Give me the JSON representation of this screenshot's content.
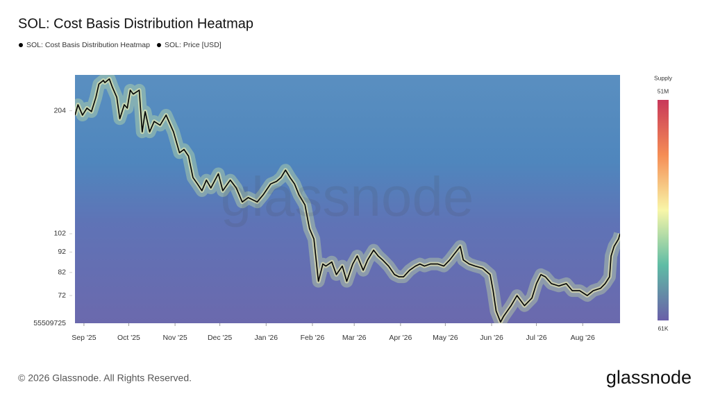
{
  "chart_data": {
    "type": "line",
    "title": "SOL: Cost Basis Distribution Heatmap",
    "legend": [
      "SOL: Cost Basis Distribution Heatmap",
      "SOL: Price [USD]"
    ],
    "log_scale": true,
    "ylim": [
      61.6,
      249.6
    ],
    "yticks": [
      204,
      102,
      92,
      82,
      72
    ],
    "y_min_label": "55509725",
    "xlim": [
      -6,
      359
    ],
    "xticks": [
      {
        "value": 0,
        "label": "Sep '25"
      },
      {
        "value": 30,
        "label": "Oct '25"
      },
      {
        "value": 61,
        "label": "Nov '25"
      },
      {
        "value": 91,
        "label": "Dec '25"
      },
      {
        "value": 122,
        "label": "Jan '26"
      },
      {
        "value": 153,
        "label": "Feb '26"
      },
      {
        "value": 181,
        "label": "Mar '26"
      },
      {
        "value": 212,
        "label": "Apr '26"
      },
      {
        "value": 242,
        "label": "May '26"
      },
      {
        "value": 273,
        "label": "Jun '26"
      },
      {
        "value": 303,
        "label": "Jul '26"
      },
      {
        "value": 334,
        "label": "Aug '26"
      }
    ],
    "colorbar": {
      "title": "Supply",
      "max_label": "51M",
      "min_label": "61K"
    },
    "series": [
      {
        "name": "SOL: Price [USD]",
        "color": "#000000",
        "x": [
          -6,
          -4,
          -1,
          2,
          5,
          8,
          10,
          13,
          14,
          17,
          19,
          22,
          24,
          27,
          29,
          31,
          33,
          37,
          39,
          41,
          44,
          47,
          51,
          55,
          60,
          64,
          67,
          70,
          73,
          76,
          79,
          82,
          85,
          90,
          93,
          98,
          102,
          106,
          110,
          116,
          120,
          125,
          129,
          132,
          135,
          138,
          141,
          144,
          148,
          151,
          154,
          157,
          160,
          162,
          166,
          169,
          173,
          176,
          180,
          183,
          187,
          190,
          194,
          197,
          200,
          204,
          208,
          211,
          214,
          218,
          222,
          225,
          228,
          232,
          237,
          241,
          245,
          248,
          252,
          254,
          258,
          262,
          267,
          272,
          274,
          276,
          279,
          281,
          286,
          290,
          295,
          300,
          303,
          306,
          309,
          313,
          318,
          323,
          327,
          332,
          337,
          341,
          346,
          349,
          352,
          353,
          355,
          358,
          359
        ],
        "values": [
          199,
          211,
          199,
          207,
          203,
          220,
          237,
          242,
          239,
          244,
          233,
          220,
          195,
          211,
          207,
          229,
          224,
          229,
          181,
          203,
          181,
          192,
          188,
          199,
          181,
          161,
          164,
          158,
          140,
          135,
          130,
          138,
          132,
          143,
          130,
          138,
          132,
          122,
          125,
          122,
          127,
          135,
          137,
          140,
          146,
          140,
          135,
          127,
          120,
          105,
          99,
          78,
          86,
          85,
          87,
          81,
          85,
          78,
          86,
          90,
          83,
          88,
          93,
          90,
          88,
          85,
          81,
          80,
          80,
          83,
          85,
          86,
          85,
          86,
          86,
          85,
          88,
          91,
          95,
          88,
          86,
          85,
          84,
          81,
          74,
          66,
          62,
          64,
          68,
          72,
          68,
          71,
          77,
          81,
          80,
          77,
          76,
          77,
          74,
          74,
          72,
          74,
          75,
          77,
          80,
          90,
          95,
          99,
          102
        ]
      }
    ],
    "footer": "© 2026 Glassnode. All Rights Reserved.",
    "brand": "glassnode"
  }
}
